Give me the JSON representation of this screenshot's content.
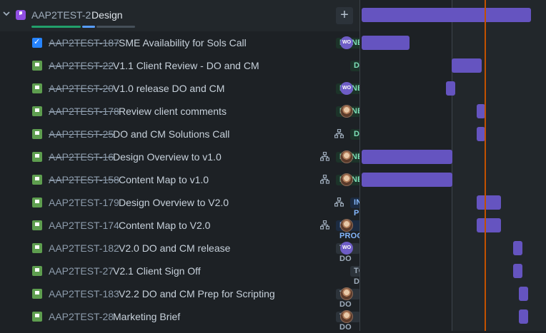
{
  "parent": {
    "key": "AAP2TEST-2",
    "title": "Design",
    "add_label": "+",
    "progress": {
      "done_fraction": 0.49,
      "in_progress_fraction": 0.14,
      "colors": {
        "done": "#22a06b",
        "in_progress": "#579dff",
        "todo": "#454f59"
      }
    }
  },
  "colors": {
    "accent": "#6554c0",
    "today_line": "#c25100",
    "status_done": "#7ee2b8",
    "status_in_progress": "#85b8ff",
    "status_todo": "#9fadbc"
  },
  "issues": [
    {
      "key": "AAP2TEST-187",
      "summary": "SME Availability for Sols Call",
      "status": "DONE",
      "type": "task-icon",
      "assignee": "WO",
      "child_issues": false,
      "key_struck": true
    },
    {
      "key": "AAP2TEST-22",
      "summary": "V1.1 Client Review - DO and CM",
      "status": "DONE",
      "type": "story-icon",
      "assignee": "",
      "child_issues": false,
      "key_struck": true
    },
    {
      "key": "AAP2TEST-20",
      "summary": "V1.0 release DO and CM",
      "status": "DONE",
      "type": "story-icon",
      "assignee": "WO",
      "child_issues": false,
      "key_struck": true
    },
    {
      "key": "AAP2TEST-178",
      "summary": "Review client comments",
      "status": "DONE",
      "type": "story-icon",
      "assignee": "photo",
      "child_issues": false,
      "key_struck": true
    },
    {
      "key": "AAP2TEST-25",
      "summary": "DO and CM Solutions Call",
      "status": "DONE",
      "type": "story-icon",
      "assignee": "",
      "child_issues": true,
      "key_struck": true
    },
    {
      "key": "AAP2TEST-16",
      "summary": "Design Overview to v1.0",
      "status": "DONE",
      "type": "story-icon",
      "assignee": "photo",
      "child_issues": true,
      "key_struck": true
    },
    {
      "key": "AAP2TEST-158",
      "summary": "Content Map to v1.0",
      "status": "DONE",
      "type": "story-icon",
      "assignee": "photo",
      "child_issues": true,
      "key_struck": true
    },
    {
      "key": "AAP2TEST-179",
      "summary": "Design Overview to V2.0",
      "status": "IN PROGRESS",
      "type": "story-icon",
      "assignee": "",
      "child_issues": true,
      "key_struck": false
    },
    {
      "key": "AAP2TEST-174",
      "summary": "Content Map to V2.0",
      "status": "IN PROGRESS",
      "type": "story-icon",
      "assignee": "photo",
      "child_issues": true,
      "key_struck": false
    },
    {
      "key": "AAP2TEST-182",
      "summary": "V2.0 DO and CM release",
      "status": "TO DO",
      "type": "story-icon",
      "assignee": "WO",
      "child_issues": false,
      "key_struck": false
    },
    {
      "key": "AAP2TEST-27",
      "summary": "V2.1 Client Sign Off",
      "status": "TO DO",
      "type": "story-icon",
      "assignee": "",
      "child_issues": false,
      "key_struck": false
    },
    {
      "key": "AAP2TEST-183",
      "summary": "V2.2 DO and CM Prep for Scripting",
      "status": "TO DO",
      "type": "story-icon",
      "assignee": "photo",
      "child_issues": false,
      "key_struck": false
    },
    {
      "key": "AAP2TEST-28",
      "summary": "Marketing Brief",
      "status": "TO DO",
      "type": "story-icon",
      "assignee": "photo",
      "child_issues": false,
      "key_struck": false
    }
  ]
}
